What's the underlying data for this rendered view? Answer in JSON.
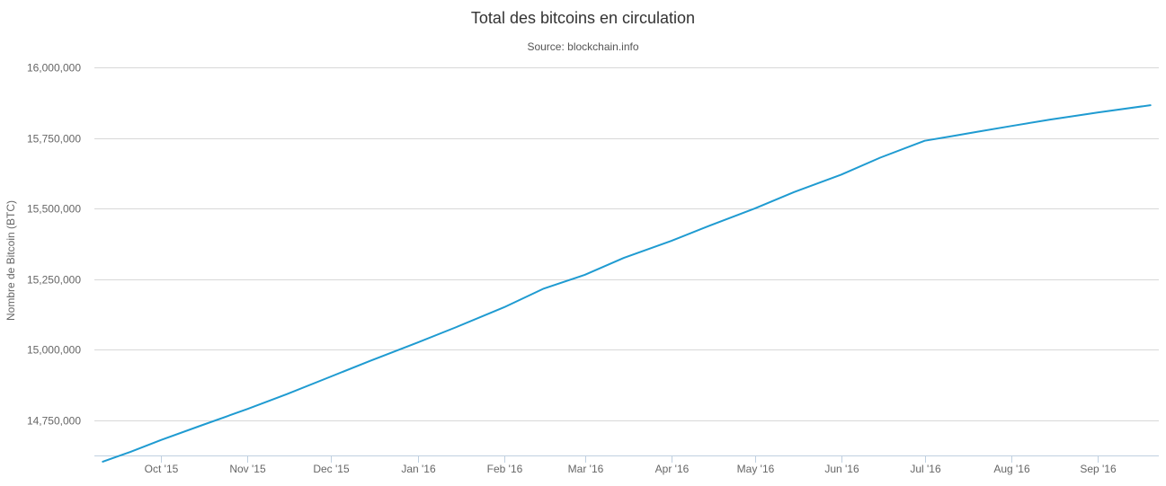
{
  "chart_data": {
    "type": "line",
    "title": "Total des bitcoins en circulation",
    "subtitle": "Source: blockchain.info",
    "xlabel": "",
    "ylabel": "Nombre de Bitcoin (BTC)",
    "ylim": [
      14625000,
      16000000
    ],
    "y_ticks": [
      {
        "value": 14750000,
        "label": "14,750,000"
      },
      {
        "value": 15000000,
        "label": "15,000,000"
      },
      {
        "value": 15250000,
        "label": "15,250,000"
      },
      {
        "value": 15500000,
        "label": "15,500,000"
      },
      {
        "value": 15750000,
        "label": "15,750,000"
      },
      {
        "value": 16000000,
        "label": "16,000,000"
      }
    ],
    "xlim": [
      "2015-09-07",
      "2016-09-23"
    ],
    "x_ticks": [
      {
        "date": "2015-10-01",
        "label": "Oct '15"
      },
      {
        "date": "2015-11-01",
        "label": "Nov '15"
      },
      {
        "date": "2015-12-01",
        "label": "Dec '15"
      },
      {
        "date": "2016-01-01",
        "label": "Jan '16"
      },
      {
        "date": "2016-02-01",
        "label": "Feb '16"
      },
      {
        "date": "2016-03-01",
        "label": "Mar '16"
      },
      {
        "date": "2016-04-01",
        "label": "Apr '16"
      },
      {
        "date": "2016-05-01",
        "label": "May '16"
      },
      {
        "date": "2016-06-01",
        "label": "Jun '16"
      },
      {
        "date": "2016-07-01",
        "label": "Jul '16"
      },
      {
        "date": "2016-08-01",
        "label": "Aug '16"
      },
      {
        "date": "2016-09-01",
        "label": "Sep '16"
      }
    ],
    "grid": true,
    "legend": "none",
    "series": [
      {
        "color": "#1f9bd1",
        "points": [
          [
            "2015-09-10",
            14603000
          ],
          [
            "2015-09-20",
            14638000
          ],
          [
            "2015-10-01",
            14680000
          ],
          [
            "2015-10-15",
            14730000
          ],
          [
            "2015-11-01",
            14790000
          ],
          [
            "2015-11-15",
            14842000
          ],
          [
            "2015-12-01",
            14905000
          ],
          [
            "2015-12-15",
            14960000
          ],
          [
            "2016-01-01",
            15025000
          ],
          [
            "2016-01-15",
            15080000
          ],
          [
            "2016-02-01",
            15150000
          ],
          [
            "2016-02-15",
            15215000
          ],
          [
            "2016-03-01",
            15265000
          ],
          [
            "2016-03-15",
            15325000
          ],
          [
            "2016-04-01",
            15385000
          ],
          [
            "2016-04-15",
            15440000
          ],
          [
            "2016-05-01",
            15500000
          ],
          [
            "2016-05-15",
            15558000
          ],
          [
            "2016-06-01",
            15620000
          ],
          [
            "2016-06-15",
            15680000
          ],
          [
            "2016-07-01",
            15740000
          ],
          [
            "2016-07-10",
            15755000
          ],
          [
            "2016-07-20",
            15772000
          ],
          [
            "2016-08-01",
            15792000
          ],
          [
            "2016-08-15",
            15815000
          ],
          [
            "2016-09-01",
            15840000
          ],
          [
            "2016-09-20",
            15866000
          ]
        ]
      }
    ]
  }
}
